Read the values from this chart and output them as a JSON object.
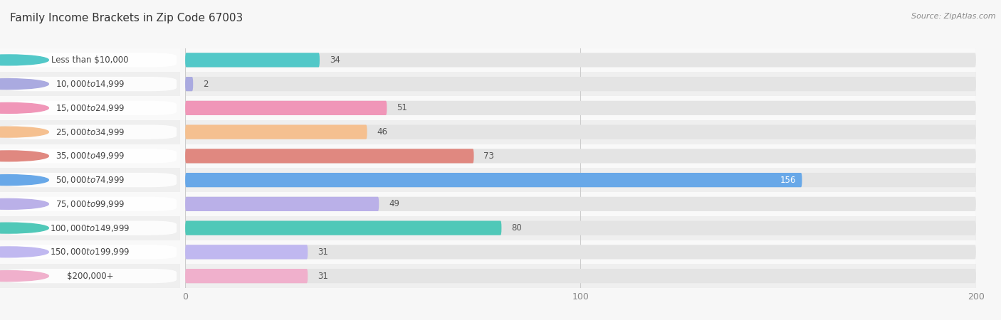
{
  "title": "Family Income Brackets in Zip Code 67003",
  "source": "Source: ZipAtlas.com",
  "categories": [
    "Less than $10,000",
    "$10,000 to $14,999",
    "$15,000 to $24,999",
    "$25,000 to $34,999",
    "$35,000 to $49,999",
    "$50,000 to $74,999",
    "$75,000 to $99,999",
    "$100,000 to $149,999",
    "$150,000 to $199,999",
    "$200,000+"
  ],
  "values": [
    34,
    2,
    51,
    46,
    73,
    156,
    49,
    80,
    31,
    31
  ],
  "bar_colors": [
    "#52c8c8",
    "#aaaae0",
    "#f096b8",
    "#f5c090",
    "#e08880",
    "#68a8e8",
    "#bab0e8",
    "#50c8b8",
    "#c0b8f0",
    "#f0b0cc"
  ],
  "bg_color": "#f7f7f7",
  "bar_bg_color": "#e4e4e4",
  "row_bg_even": "#efefef",
  "row_bg_odd": "#f9f9f9",
  "xlim": [
    0,
    200
  ],
  "xticks": [
    0,
    100,
    200
  ],
  "title_fontsize": 11,
  "label_fontsize": 8.5,
  "value_fontsize": 8.5,
  "source_fontsize": 8
}
